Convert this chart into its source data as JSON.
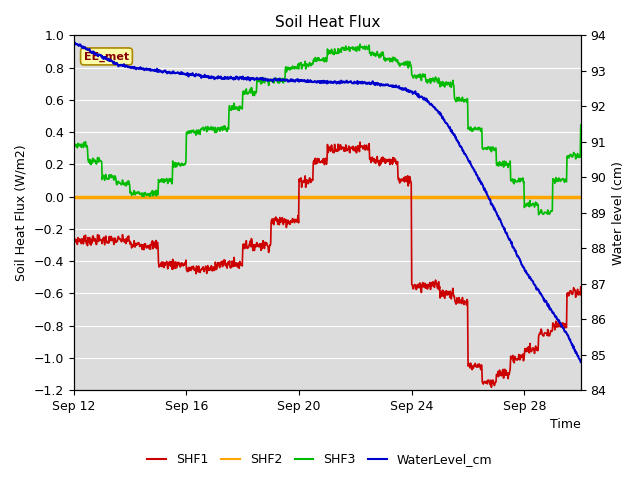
{
  "title": "Soil Heat Flux",
  "ylabel_left": "Soil Heat Flux (W/m2)",
  "ylabel_right": "Water level (cm)",
  "xlabel": "Time",
  "ylim_left": [
    -1.2,
    1.0
  ],
  "ylim_right": [
    84.0,
    94.0
  ],
  "yticks_left": [
    -1.2,
    -1.0,
    -0.8,
    -0.6,
    -0.4,
    -0.2,
    0.0,
    0.2,
    0.4,
    0.6,
    0.8,
    1.0
  ],
  "yticks_right": [
    84.0,
    85.0,
    86.0,
    87.0,
    88.0,
    89.0,
    90.0,
    91.0,
    92.0,
    93.0,
    94.0
  ],
  "colors": {
    "SHF1": "#cc0000",
    "SHF2": "#ffa500",
    "SHF3": "#00bb00",
    "WaterLevel": "#0000cc",
    "background": "#dcdcdc",
    "grid": "#ffffff"
  },
  "annotation_box": "EE_met",
  "annotation_box_facecolor": "#ffffaa",
  "annotation_box_edgecolor": "#aa8800"
}
